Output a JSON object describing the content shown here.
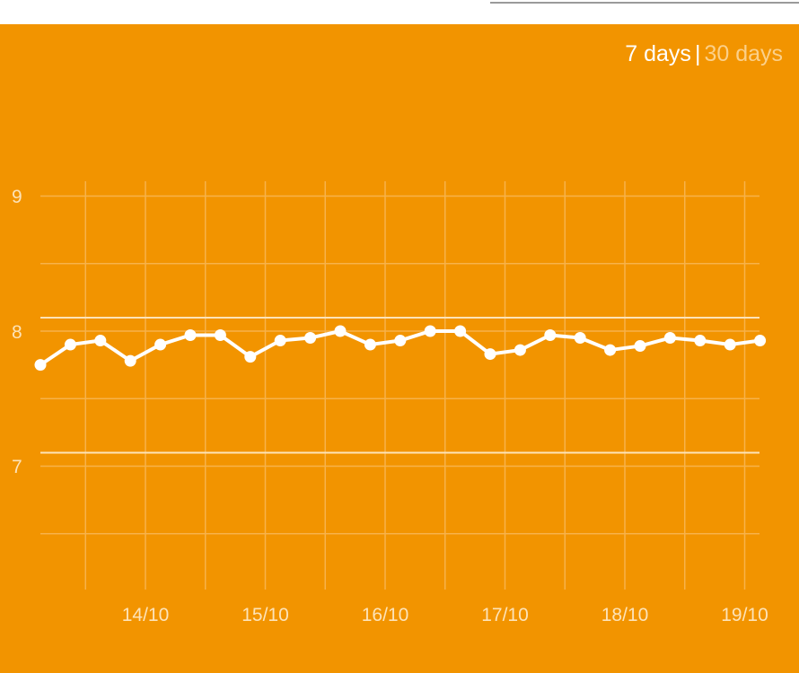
{
  "range_selector": {
    "options": [
      "7 days",
      "30 days"
    ],
    "separator": "|",
    "selected": "7 days"
  },
  "colors": {
    "background": "#f29400",
    "line": "#ffffff",
    "grid": "#f7b24a",
    "reference_lines": "#fde3b8"
  },
  "chart_data": {
    "type": "line",
    "title": "",
    "xlabel": "",
    "ylabel": "",
    "ylim": [
      6.0,
      9.1
    ],
    "yticks": [
      7,
      8,
      9
    ],
    "xticks": [
      "14/10",
      "15/10",
      "16/10",
      "17/10",
      "18/10",
      "19/10"
    ],
    "grid": true,
    "reference_lines": [
      8.1,
      7.1
    ],
    "x": [
      "13/10 03:00",
      "13/10 09:00",
      "13/10 15:00",
      "13/10 21:00",
      "14/10 03:00",
      "14/10 09:00",
      "14/10 15:00",
      "14/10 21:00",
      "15/10 03:00",
      "15/10 09:00",
      "15/10 15:00",
      "15/10 21:00",
      "16/10 03:00",
      "16/10 09:00",
      "16/10 15:00",
      "16/10 21:00",
      "17/10 03:00",
      "17/10 09:00",
      "17/10 15:00",
      "17/10 21:00",
      "18/10 03:00",
      "18/10 09:00",
      "18/10 15:00",
      "18/10 21:00",
      "19/10 03:00"
    ],
    "values": [
      7.75,
      7.9,
      7.93,
      7.78,
      7.9,
      7.97,
      7.97,
      7.81,
      7.93,
      7.95,
      8.0,
      7.9,
      7.93,
      8.0,
      8.0,
      7.83,
      7.86,
      7.97,
      7.95,
      7.86,
      7.89,
      7.95,
      7.93,
      7.9,
      7.93
    ]
  }
}
